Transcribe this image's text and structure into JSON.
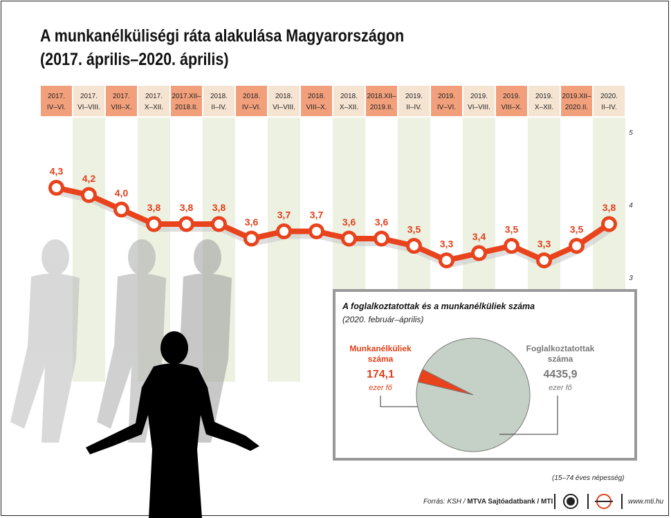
{
  "title_line1": "A munkanélküliségi ráta alakulása Magyarországon",
  "title_line2": "(2017. április–2020. április)",
  "chart_data": {
    "type": "line",
    "title": "A munkanélküliségi ráta alakulása Magyarországon (2017. április–2020. április)",
    "categories": [
      [
        "2017.",
        "IV–VI."
      ],
      [
        "2017.",
        "VI–VIII."
      ],
      [
        "2017.",
        "VIII–X."
      ],
      [
        "2017.",
        "X–XII."
      ],
      [
        "2017.XII–",
        "2018.II."
      ],
      [
        "2018.",
        "II–IV."
      ],
      [
        "2018.",
        "IV–VI."
      ],
      [
        "2018.",
        "VI–VIII."
      ],
      [
        "2018.",
        "VIII–X."
      ],
      [
        "2018.",
        "X–XII."
      ],
      [
        "2018.XII–",
        "2019.II."
      ],
      [
        "2019.",
        "II–IV."
      ],
      [
        "2019.",
        "IV–VI."
      ],
      [
        "2019.",
        "VI–VIII."
      ],
      [
        "2019.",
        "VIII–X."
      ],
      [
        "2019.",
        "X–XII."
      ],
      [
        "2019.XII–",
        "2020.II."
      ],
      [
        "2020.",
        "II–IV."
      ]
    ],
    "highlight": [
      true,
      false,
      true,
      false,
      true,
      false,
      true,
      false,
      true,
      false,
      true,
      false,
      true,
      false,
      true,
      false,
      true,
      false
    ],
    "values": [
      4.3,
      4.2,
      4.0,
      3.8,
      3.8,
      3.8,
      3.6,
      3.7,
      3.7,
      3.6,
      3.6,
      3.5,
      3.3,
      3.4,
      3.5,
      3.3,
      3.5,
      3.8
    ],
    "value_labels": [
      "4,3",
      "4,2",
      "4,0",
      "3,8",
      "3,8",
      "3,8",
      "3,6",
      "3,7",
      "3,7",
      "3,6",
      "3,6",
      "3,5",
      "3,3",
      "3,4",
      "3,5",
      "3,3",
      "3,5",
      "3,8"
    ],
    "y_ticks": [
      2,
      3,
      4,
      5
    ],
    "ylim": [
      2,
      5
    ],
    "grid": false,
    "line_color": "#e8431c",
    "header_colors": {
      "highlight": "#f2a07c",
      "normal": "#f6e4d2"
    },
    "band_color": "#ecf1e2",
    "pie": {
      "type": "pie",
      "title": "A foglalkoztatottak és a munkanélküliek száma",
      "subtitle": "(2020. február–április)",
      "slices": [
        {
          "name_line1": "Munkanélküliek",
          "name_line2": "száma",
          "value": 174.1,
          "value_label": "174,1",
          "unit": "ezer fő",
          "color": "#e8431c"
        },
        {
          "name_line1": "Foglalkoztatottak",
          "name_line2": "száma",
          "value": 4435.9,
          "value_label": "4435,9",
          "unit": "ezer fő",
          "color": "#c5d1c6"
        }
      ]
    }
  },
  "population_note": "(15–74 éves népesség)",
  "source_prefix": "Forrás: KSH / ",
  "source_bold": "MTVA Sajtóadatbank / MTI",
  "site": "www.mti.hu"
}
